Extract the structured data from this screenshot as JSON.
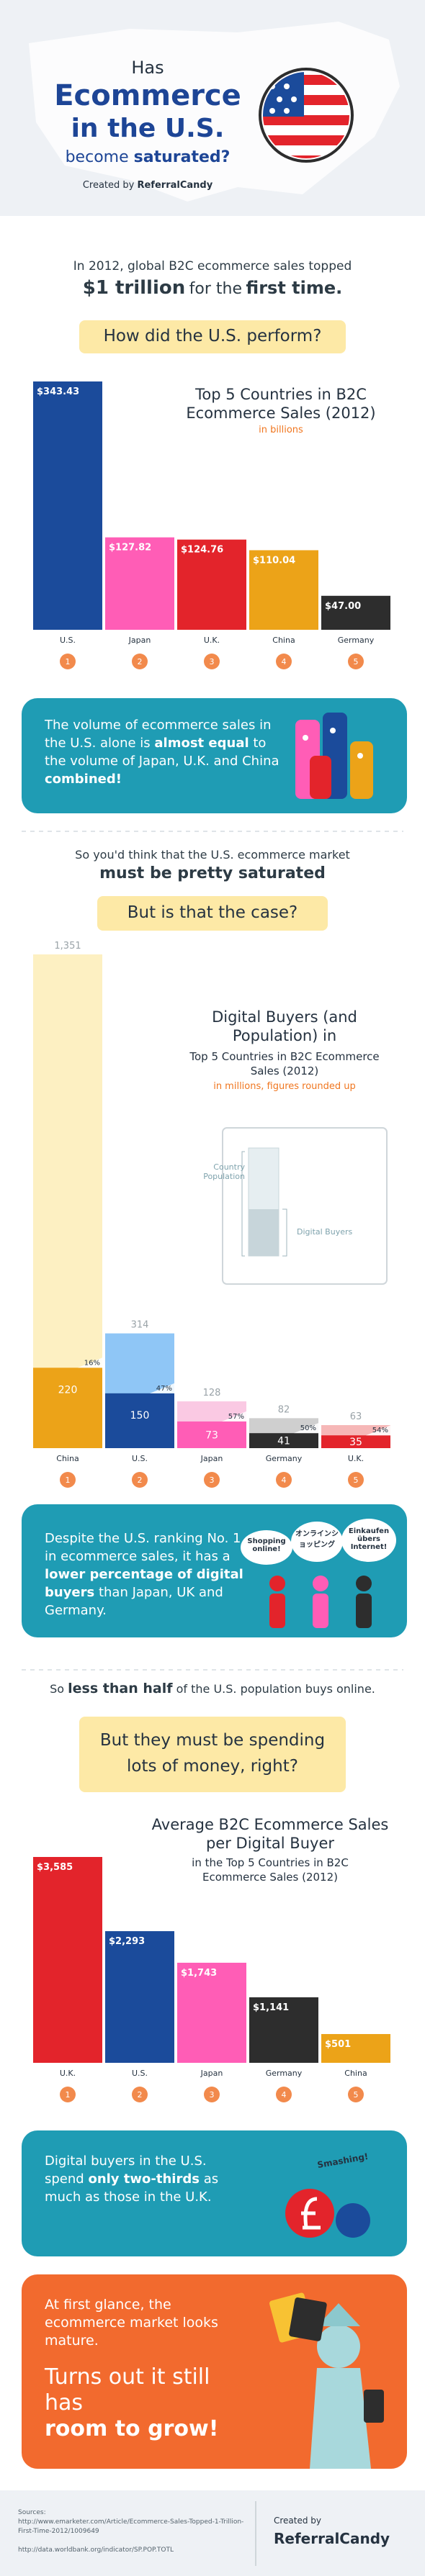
{
  "header": {
    "line1": "Has",
    "line2": "Ecommerce",
    "line3": "in the U.S.",
    "line4a": "become",
    "line4b": "saturated?",
    "credit": "Created by",
    "brand": "ReferralCandy"
  },
  "intro": [
    "In 2012, global B2C ecommerce sales topped",
    "$1 trillion",
    "for the",
    "first time."
  ],
  "banner1": "How did the U.S. perform?",
  "note1": [
    "The volume of ecommerce sales in the U.S. alone is",
    "almost equal",
    "to the volume of Japan, U.K. and China",
    "combined!"
  ],
  "transition2": [
    "So you'd think that the U.S. ecommerce market",
    "must be pretty saturated"
  ],
  "banner2": "But is that the case?",
  "note2": [
    "Despite the U.S. ranking No. 1 in ecommerce sales, it has a",
    "lower percentage of digital buyers",
    "than Japan, UK and Germany."
  ],
  "bubbles": [
    "Shopping online!",
    "オンラインショッピング",
    "Einkaufen übers Internet!"
  ],
  "transition3": [
    "So",
    "less than half",
    "of the U.S. population buys online."
  ],
  "banner3": "But they must be spending lots of money, right?",
  "note3": [
    "Digital buyers in the U.S. spend",
    "only two-thirds",
    "as much as those in the U.K."
  ],
  "exclaim": "Smashing!",
  "closing": {
    "lead": "At first glance, the ecommerce market looks mature.",
    "punch": [
      "Turns out it still has",
      "room to grow!"
    ]
  },
  "footer": {
    "sources_label": "Sources:",
    "sources": [
      "http://www.emarketer.com/Article/Ecommerce-Sales-Topped-1-Trillion-First-Time-2012/1009649",
      "http://data.worldbank.org/indicator/SP.POP.TOTL"
    ],
    "credit": "Created by",
    "brand": "ReferralCandy"
  },
  "chart_data": [
    {
      "type": "bar",
      "title": "Top 5 Countries in B2C Ecommerce Sales (2012)",
      "subtitle": "in billions",
      "categories": [
        "U.S.",
        "Japan",
        "U.K.",
        "China",
        "Germany"
      ],
      "values": [
        343.43,
        127.82,
        124.76,
        110.04,
        47.0
      ],
      "value_labels": [
        "$343.43",
        "$127.82",
        "$124.76",
        "$110.04",
        "$47.00"
      ],
      "colors": [
        "#1b4b9b",
        "#ff5db6",
        "#e3242b",
        "#eca318",
        "#2d2d2d"
      ],
      "ranks": [
        1,
        2,
        3,
        4,
        5
      ]
    },
    {
      "type": "overlay",
      "title": "Digital Buyers (and Population) in",
      "subtitle": "Top 5 Countries in B2C Ecommerce Sales (2012)",
      "note": "in millions, figures rounded up",
      "categories": [
        "China",
        "U.S.",
        "Japan",
        "Germany",
        "U.K."
      ],
      "series": [
        {
          "name": "Country Population",
          "colors": [
            "#fdf0c2",
            "#8fc6f6",
            "#fac9e3",
            "#cfcfcf",
            "#f6b7b7"
          ],
          "values": [
            1351,
            314,
            128,
            82,
            63
          ],
          "value_labels": [
            "1,351",
            "314",
            "128",
            "82",
            "63"
          ]
        },
        {
          "name": "Digital Buyers",
          "colors": [
            "#eca318",
            "#1b4b9b",
            "#ff5db6",
            "#2d2d2d",
            "#e3242b"
          ],
          "values": [
            220,
            150,
            73,
            41,
            35
          ]
        }
      ],
      "shares": {
        "values": [
          16,
          47,
          57,
          50,
          54
        ],
        "value_labels": [
          "16%",
          "47%",
          "57%",
          "50%",
          "54%"
        ]
      },
      "ranks": [
        1,
        2,
        3,
        4,
        5
      ]
    },
    {
      "type": "bar",
      "title": "Average B2C Ecommerce Sales per Digital Buyer",
      "subtitle": "in the Top 5 Countries in B2C Ecommerce Sales (2012)",
      "categories": [
        "U.K.",
        "U.S.",
        "Japan",
        "Germany",
        "China"
      ],
      "values": [
        3585,
        2293,
        1743,
        1141,
        501
      ],
      "value_labels": [
        "$3,585",
        "$2,293",
        "$1,743",
        "$1,141",
        "$501"
      ],
      "colors": [
        "#e3242b",
        "#1b4b9b",
        "#ff5db6",
        "#2d2d2d",
        "#eca318"
      ],
      "ranks": [
        1,
        2,
        3,
        4,
        5
      ]
    }
  ]
}
